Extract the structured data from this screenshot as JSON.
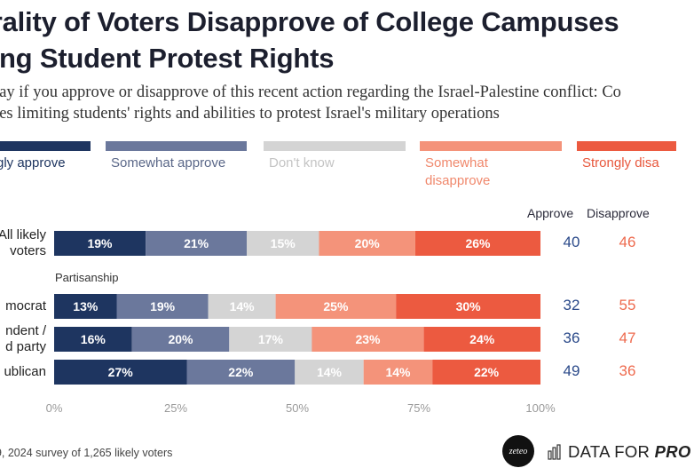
{
  "header": {
    "title": "urality of Voters Disapprove of College Campuses\niting Student Protest Rights",
    "subtitle": "say if you approve or disapprove of this recent action regarding the Israel-Palestine conflict: Co\nses limiting students' rights and abilities to protest Israel's military operations"
  },
  "legend": [
    {
      "label": "gly approve",
      "color": "#1e3560",
      "text_color": "#1e3560"
    },
    {
      "label": "Somewhat approve",
      "color": "#6b789c",
      "text_color": "#5a6788"
    },
    {
      "label": "Don't know",
      "color": "#d4d4d4",
      "text_color": "#c4c4c4"
    },
    {
      "label": "Somewhat\ndisapprove",
      "color": "#f4937a",
      "text_color": "#f0886c"
    },
    {
      "label": "Strongly disa",
      "color": "#ec5a40",
      "text_color": "#e8573c"
    }
  ],
  "columns": {
    "approve": "Approve",
    "disapprove": "Disapprove",
    "approve_color": "#2b4a8a",
    "disapprove_color": "#ee6a4e"
  },
  "group_label": "Partisanship",
  "row_labels": [
    [
      "All likely",
      "voters"
    ],
    [
      "mocrat"
    ],
    [
      "ndent /",
      "d party"
    ],
    [
      "ublican"
    ]
  ],
  "sums": [
    {
      "approve": "40",
      "disapprove": "46"
    },
    {
      "approve": "32",
      "disapprove": "55"
    },
    {
      "approve": "36",
      "disapprove": "47"
    },
    {
      "approve": "49",
      "disapprove": "36"
    }
  ],
  "chart_data": {
    "type": "bar",
    "orientation": "horizontal-stacked-100",
    "categories": [
      "All likely voters",
      "mocrat",
      "ndent / d party",
      "ublican"
    ],
    "series": [
      {
        "name": "gly approve",
        "values": [
          19,
          13,
          16,
          27
        ],
        "labels": [
          "19%",
          "13%",
          "16%",
          "27%"
        ]
      },
      {
        "name": "Somewhat approve",
        "values": [
          21,
          19,
          20,
          22
        ],
        "labels": [
          "21%",
          "19%",
          "20%",
          "22%"
        ]
      },
      {
        "name": "Don't know",
        "values": [
          15,
          14,
          17,
          14
        ],
        "labels": [
          "15%",
          "14%",
          "17%",
          "14%"
        ]
      },
      {
        "name": "Somewhat disapprove",
        "values": [
          20,
          25,
          23,
          14
        ],
        "labels": [
          "20%",
          "25%",
          "23%",
          "14%"
        ]
      },
      {
        "name": "Strongly disa",
        "values": [
          26,
          30,
          24,
          22
        ],
        "labels": [
          "26%",
          "30%",
          "24%",
          "22%"
        ]
      }
    ],
    "xlim": [
      0,
      100
    ],
    "xticks": [
      "0%",
      "25%",
      "50%",
      "75%",
      "100%"
    ],
    "xtick_values": [
      0,
      25,
      50,
      75,
      100
    ],
    "legend_position": "top",
    "grid": false
  },
  "footnote": "29, 2024 survey of 1,265 likely voters",
  "branding": {
    "logo_text": "zeteo",
    "dfp_prefix": "DATA FOR ",
    "dfp_suffix": "PRO",
    "icon": "bar-chart-icon"
  }
}
